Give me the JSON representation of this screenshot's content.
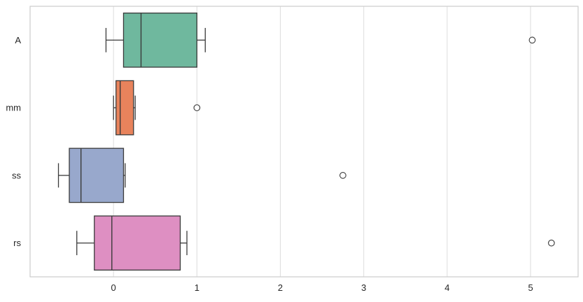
{
  "chart_data": {
    "type": "boxplot",
    "orientation": "horizontal",
    "title": "",
    "xlabel": "",
    "ylabel": "",
    "categories": [
      "A",
      "mm",
      "ss",
      "rs"
    ],
    "x_ticks": [
      0,
      1,
      2,
      3,
      4,
      5
    ],
    "xlim": [
      -1.0,
      5.57
    ],
    "grid": true,
    "legend": "none",
    "series": [
      {
        "category": "A",
        "whisker_low": -0.09,
        "q1": 0.12,
        "median": 0.33,
        "q3": 1.0,
        "whisker_high": 1.1,
        "outliers": [
          5.02
        ],
        "color": "#6fb89e"
      },
      {
        "category": "mm",
        "whisker_low": 0.0,
        "q1": 0.03,
        "median": 0.08,
        "q3": 0.24,
        "whisker_high": 0.26,
        "outliers": [
          1.0
        ],
        "color": "#e8835c"
      },
      {
        "category": "ss",
        "whisker_low": -0.66,
        "q1": -0.53,
        "median": -0.39,
        "q3": 0.12,
        "whisker_high": 0.14,
        "outliers": [
          2.75
        ],
        "color": "#98a8cc"
      },
      {
        "category": "rs",
        "whisker_low": -0.44,
        "q1": -0.23,
        "median": -0.02,
        "q3": 0.8,
        "whisker_high": 0.88,
        "outliers": [
          5.25
        ],
        "color": "#de8fc2"
      }
    ],
    "colors": {
      "plot_bg": "#ffffff",
      "figure_bg": "#ffffff",
      "grid": "#dcdcdc",
      "border": "#cccccc",
      "box_edge": "#3a3a3a",
      "outlier_fill": "#ffffff",
      "text": "#262626"
    }
  }
}
